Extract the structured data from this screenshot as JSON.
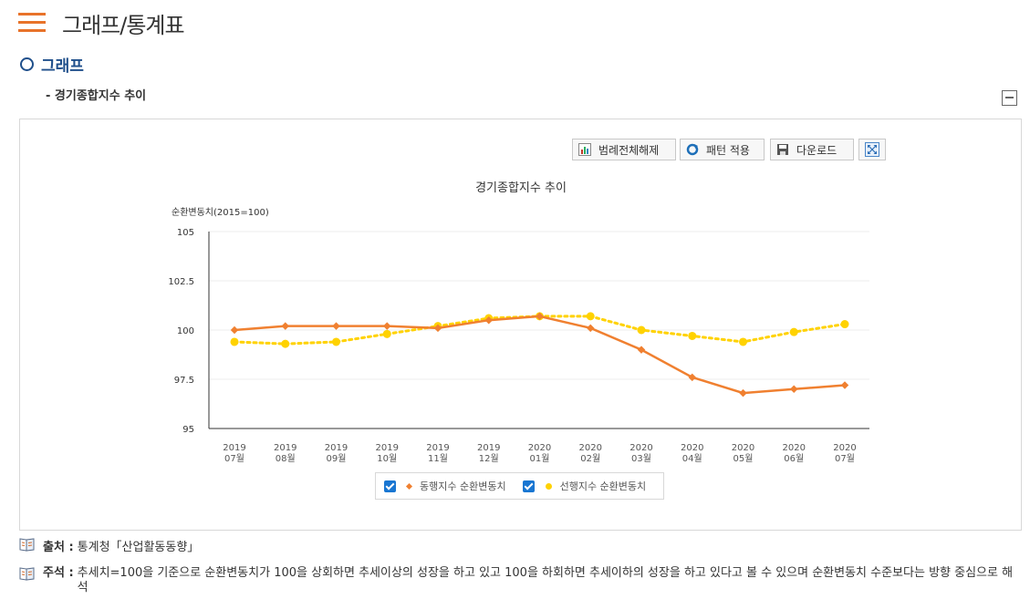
{
  "page": {
    "title": "그래프/통계표",
    "section_title": "그래프",
    "subtitle": "- 경기종합지수 추이"
  },
  "toolbar": {
    "legend_off": "범례전체해제",
    "pattern_apply": "패턴 적용",
    "download": "다운로드"
  },
  "chart_data": {
    "type": "line",
    "title": "경기종합지수 추이",
    "ylabel": "순환변동치(2015=100)",
    "ylim": [
      95,
      105
    ],
    "yticks": [
      "105",
      "102.5",
      "100",
      "97.5",
      "95"
    ],
    "categories": [
      [
        "2019",
        "07월"
      ],
      [
        "2019",
        "08월"
      ],
      [
        "2019",
        "09월"
      ],
      [
        "2019",
        "10월"
      ],
      [
        "2019",
        "11월"
      ],
      [
        "2019",
        "12월"
      ],
      [
        "2020",
        "01월"
      ],
      [
        "2020",
        "02월"
      ],
      [
        "2020",
        "03월"
      ],
      [
        "2020",
        "04월"
      ],
      [
        "2020",
        "05월"
      ],
      [
        "2020",
        "06월"
      ],
      [
        "2020",
        "07월"
      ]
    ],
    "series": [
      {
        "name": "동행지수 순환변동치",
        "color": "#f08030",
        "marker": "diamond",
        "style": "solid",
        "values": [
          100.0,
          100.2,
          100.2,
          100.2,
          100.1,
          100.5,
          100.7,
          100.1,
          99.0,
          97.6,
          96.8,
          97.0,
          97.2
        ]
      },
      {
        "name": "선행지수 순환변동치",
        "color": "#ffd200",
        "marker": "circle",
        "style": "dotted",
        "values": [
          99.4,
          99.3,
          99.4,
          99.8,
          100.2,
          100.6,
          100.7,
          100.7,
          100.0,
          99.7,
          99.4,
          99.9,
          100.3
        ]
      }
    ],
    "grid": true,
    "legend_position": "bottom"
  },
  "notes": {
    "source_label": "출처 :",
    "source_text": "통계청「산업활동동향」",
    "remark_label": "주석 :",
    "remark_text": "추세치=100을 기준으로 순환변동치가 100을 상회하면 추세이상의 성장을 하고 있고 100을 하회하면 추세이하의 성장을 하고 있다고 볼 수 있으며 순환변동치 수준보다는 방향 중심으로 해석"
  }
}
